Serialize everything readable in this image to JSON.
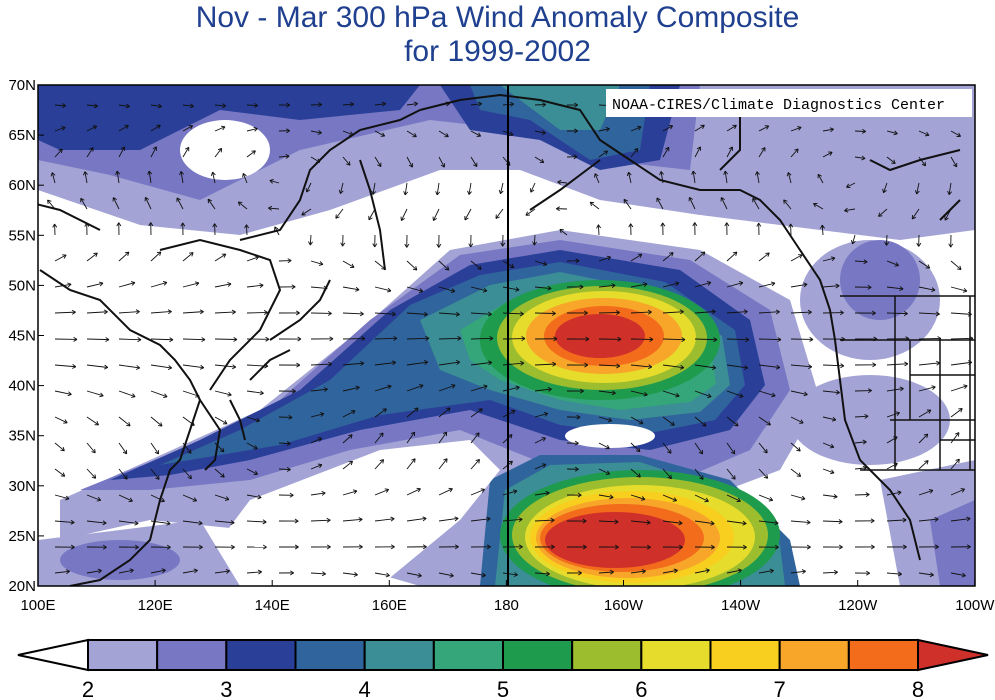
{
  "title_line1": "Nov - Mar 300 hPa Wind Anomaly Composite",
  "title_line2": "for 1999-2002",
  "credit": "NOAA-CIRES/Climate Diagnostics Center",
  "lat_labels": [
    "70N",
    "65N",
    "60N",
    "55N",
    "50N",
    "45N",
    "40N",
    "35N",
    "30N",
    "25N",
    "20N"
  ],
  "lon_labels": [
    "100E",
    "120E",
    "140E",
    "160E",
    "180",
    "160W",
    "140W",
    "120W",
    "100W"
  ],
  "colorbar_labels": [
    "2",
    "3",
    "4",
    "5",
    "6",
    "7",
    "8"
  ],
  "colors": {
    "levels": [
      "#ffffff",
      "#a3a3d6",
      "#7777c4",
      "#2a3f98",
      "#30649c",
      "#3b8d96",
      "#35a57a",
      "#1f9b4d",
      "#9cbd2e",
      "#e6dc2c",
      "#f8cf1f",
      "#f7a62a",
      "#f26c1b",
      "#d0302a"
    ],
    "land": "#111111",
    "arrows": "#111111",
    "title": "#1f3f8f"
  },
  "map": {
    "lon_range": [
      "100E",
      "100W"
    ],
    "lat_range": [
      "20N",
      "70N"
    ],
    "field": "300 hPa wind anomaly speed (m/s) with vector arrows"
  }
}
